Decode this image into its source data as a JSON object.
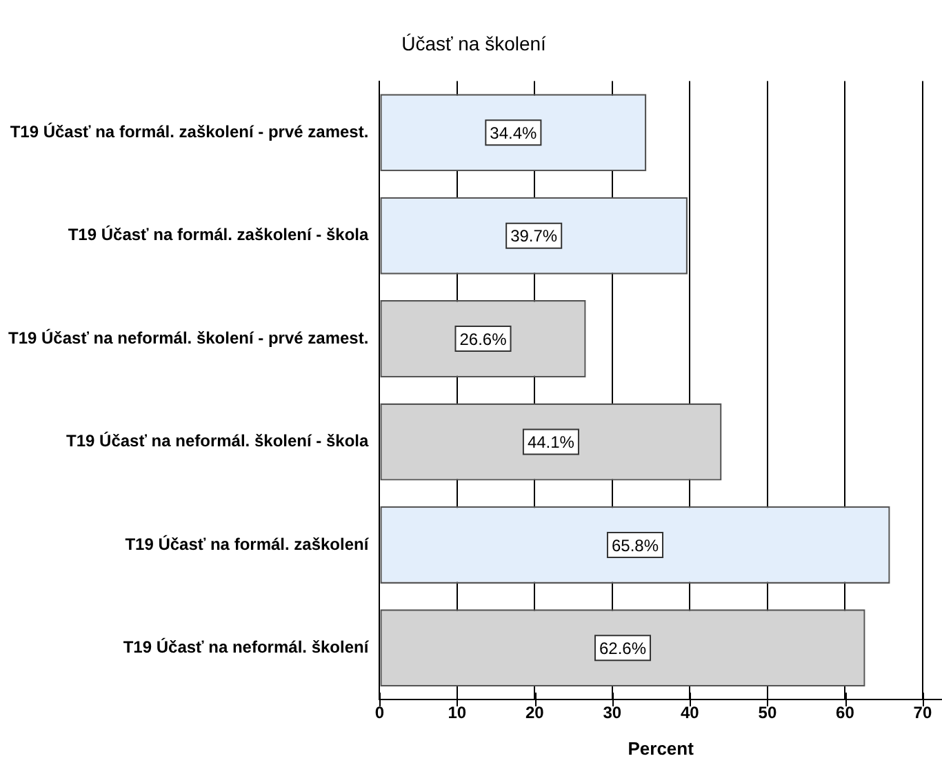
{
  "chart_data": {
    "type": "bar",
    "orientation": "horizontal",
    "title": "Účasť na školení",
    "xlabel": "Percent",
    "categories": [
      "T19 Účasť na formál. zaškolení - prvé zamest.",
      "T19 Účasť na formál. zaškolení - škola",
      "T19 Účasť na neformál. školení - prvé zamest.",
      "T19 Účasť na neformál. školení - škola",
      "T19 Účasť na formál. zaškolení",
      "T19 Účasť na neformál. školení"
    ],
    "values": [
      34.4,
      39.7,
      26.6,
      44.1,
      65.8,
      62.6
    ],
    "colors": [
      "#e3eefb",
      "#e3eefb",
      "#d3d3d3",
      "#d3d3d3",
      "#e3eefb",
      "#d3d3d3"
    ],
    "value_labels": [
      "34.4%",
      "39.7%",
      "26.6%",
      "44.1%",
      "65.8%",
      "62.6%"
    ],
    "xlim": [
      0,
      72.5
    ],
    "xticks": [
      0,
      10,
      20,
      30,
      40,
      50,
      60,
      70
    ],
    "grid": "x",
    "legend": false
  }
}
